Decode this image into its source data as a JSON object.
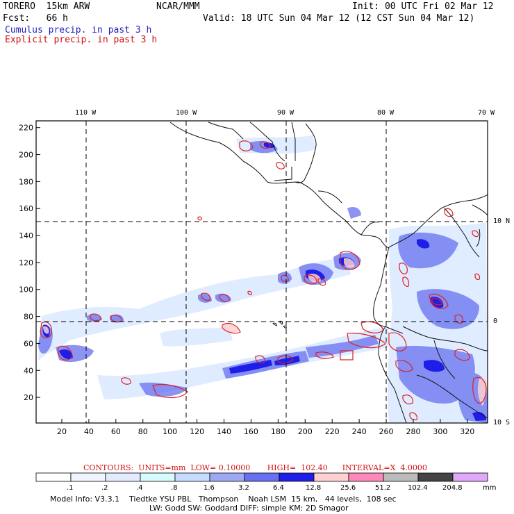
{
  "header": {
    "model": "TORERO  15km ARW",
    "org": "NCAR/MMM",
    "init": "Init: 00 UTC Fri 02 Mar 12",
    "fcst": "Fcst:   66 h",
    "valid": "Valid: 18 UTC Sun 04 Mar 12 (12 CST Sun 04 Mar 12)",
    "legend_cumulus": "Cumulus precip. in past 3 h",
    "legend_explicit": "Explicit precip. in past 3 h"
  },
  "map": {
    "lon_labels": [
      "110 W",
      "100 W",
      "90 W",
      "80 W",
      "70 W"
    ],
    "lat_labels": [
      "10 N",
      "0",
      "10 S"
    ],
    "y_ticks": [
      "220",
      "200",
      "180",
      "160",
      "140",
      "120",
      "100",
      "80",
      "60",
      "40",
      "20"
    ],
    "x_ticks": [
      "20",
      "40",
      "60",
      "80",
      "100",
      "120",
      "140",
      "160",
      "180",
      "200",
      "220",
      "240",
      "260",
      "280",
      "300",
      "320"
    ],
    "xlim": [
      1,
      335
    ],
    "ylim": [
      1,
      225
    ]
  },
  "contours_line": {
    "label": "CONTOURS:  UNITS=mm  LOW= 0.10000       HIGH=  102.40      INTERVAL=X  4.0000"
  },
  "colorbar": {
    "thresholds": [
      ".1",
      ".2",
      ".4",
      ".8",
      "1.6",
      "3.2",
      "6.4",
      "12.8",
      "25.6",
      "51.2",
      "102.4",
      "204.8"
    ],
    "unit": "mm",
    "colors": [
      "#ffffff",
      "#f0f4ff",
      "#e3ecff",
      "#d6fbfb",
      "#c6dcff",
      "#9fa8f4",
      "#6670f0",
      "#1e1ee8",
      "#ffd0d0",
      "#ff88bb",
      "#bbbbbb",
      "#444444",
      "#e0a8f8"
    ]
  },
  "footer": {
    "line1": "Model Info: V3.3.1    Tiedtke YSU PBL   Thompson    Noah LSM  15 km,   44 levels,  108 sec",
    "line2": "LW: Godd SW: Goddard DIFF: simple KM: 2D Smagor"
  }
}
